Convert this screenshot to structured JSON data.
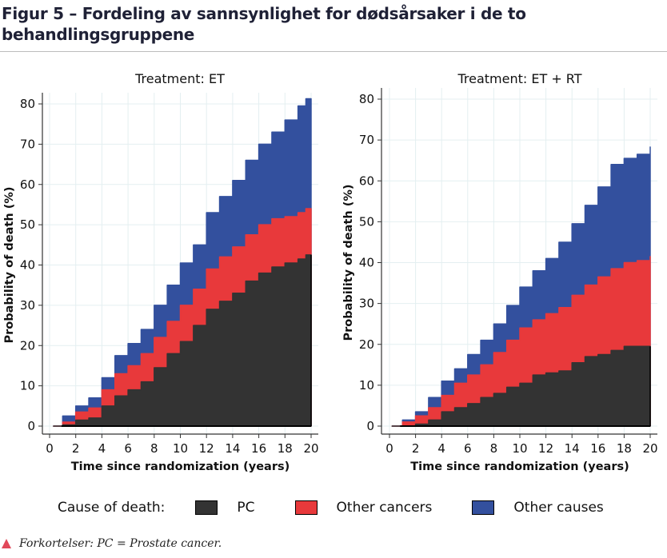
{
  "figure": {
    "title": "Figur 5 – Fordeling av sannsynlighet for dødsårsaker i de to behandlingsgruppene",
    "footnote": "Forkortelser: PC = Prostate cancer.",
    "footnote_icon": "triangle-marker-icon"
  },
  "legend": {
    "title": "Cause of death:",
    "placement": "bottom",
    "items": [
      {
        "label": "PC",
        "color": "#333333"
      },
      {
        "label": "Other cancers",
        "color": "#e8393b"
      },
      {
        "label": "Other causes",
        "color": "#33509e"
      }
    ]
  },
  "chart_data": [
    {
      "type": "area",
      "stacked": true,
      "title": "Treatment: ET",
      "xlabel": "Time since randomization (years)",
      "ylabel": "Probability of death (%)",
      "xlim": [
        0,
        20
      ],
      "ylim": [
        0,
        80
      ],
      "xticks": [
        0,
        2,
        4,
        6,
        8,
        10,
        12,
        14,
        16,
        18,
        20
      ],
      "yticks": [
        0,
        10,
        20,
        30,
        40,
        50,
        60,
        70,
        80
      ],
      "grid": true,
      "x": [
        0.3,
        1,
        2,
        3,
        4,
        5,
        6,
        7,
        8,
        9,
        10,
        11,
        12,
        13,
        14,
        15,
        16,
        17,
        18,
        19,
        19.6,
        20
      ],
      "cumulative": true,
      "series": [
        {
          "name": "PC",
          "color": "#333333",
          "values": [
            0,
            0.3,
            1.5,
            2,
            5,
            7.5,
            9,
            11,
            14.5,
            18,
            21,
            25,
            29,
            31,
            33,
            36,
            38,
            39.5,
            40.5,
            41.5,
            42.5,
            42.5
          ]
        },
        {
          "name": "Other cancers",
          "color": "#e8393b",
          "values": [
            0,
            1,
            3.5,
            4.5,
            9,
            13,
            15,
            18,
            22,
            26,
            30,
            34,
            39,
            42,
            44.5,
            47.5,
            50,
            51.5,
            52,
            53,
            54,
            54
          ]
        },
        {
          "name": "Other causes",
          "color": "#33509e",
          "values": [
            0,
            2.5,
            5,
            7,
            12,
            17.5,
            20.5,
            24,
            30,
            35,
            40.5,
            45,
            53,
            57,
            61,
            66,
            70,
            73,
            76,
            79.5,
            81.3,
            81.3
          ]
        }
      ]
    },
    {
      "type": "area",
      "stacked": true,
      "title": "Treatment: ET + RT",
      "xlabel": "Time since randomization (years)",
      "ylabel": "Probability of death (%)",
      "xlim": [
        0,
        20
      ],
      "ylim": [
        0,
        80
      ],
      "xticks": [
        0,
        2,
        4,
        6,
        8,
        10,
        12,
        14,
        16,
        18,
        20
      ],
      "yticks": [
        0,
        10,
        20,
        30,
        40,
        50,
        60,
        70,
        80
      ],
      "grid": true,
      "x": [
        0.2,
        1,
        2,
        3,
        4,
        5,
        6,
        7,
        8,
        9,
        10,
        11,
        12,
        13,
        14,
        15,
        16,
        17,
        18,
        19,
        20
      ],
      "cumulative": true,
      "series": [
        {
          "name": "PC",
          "color": "#333333",
          "values": [
            0,
            0,
            0.5,
            1.5,
            3.5,
            4.5,
            5.5,
            7,
            8,
            9.5,
            10.5,
            12.5,
            13,
            13.5,
            15.5,
            17,
            17.5,
            18.5,
            19.5,
            19.5,
            19.5
          ]
        },
        {
          "name": "Other cancers",
          "color": "#e8393b",
          "values": [
            0,
            1,
            2.5,
            4.5,
            7.5,
            10.5,
            12.5,
            15,
            18,
            21,
            24,
            26,
            27.5,
            29,
            32,
            34.5,
            36.5,
            38.5,
            40,
            40.5,
            41.5
          ]
        },
        {
          "name": "Other causes",
          "color": "#33509e",
          "values": [
            0,
            1.5,
            3.5,
            7,
            11,
            14,
            17.5,
            21,
            25,
            29.5,
            34,
            38,
            41,
            45,
            49.5,
            54,
            58.5,
            64,
            65.5,
            66.5,
            68.3
          ]
        }
      ]
    }
  ]
}
